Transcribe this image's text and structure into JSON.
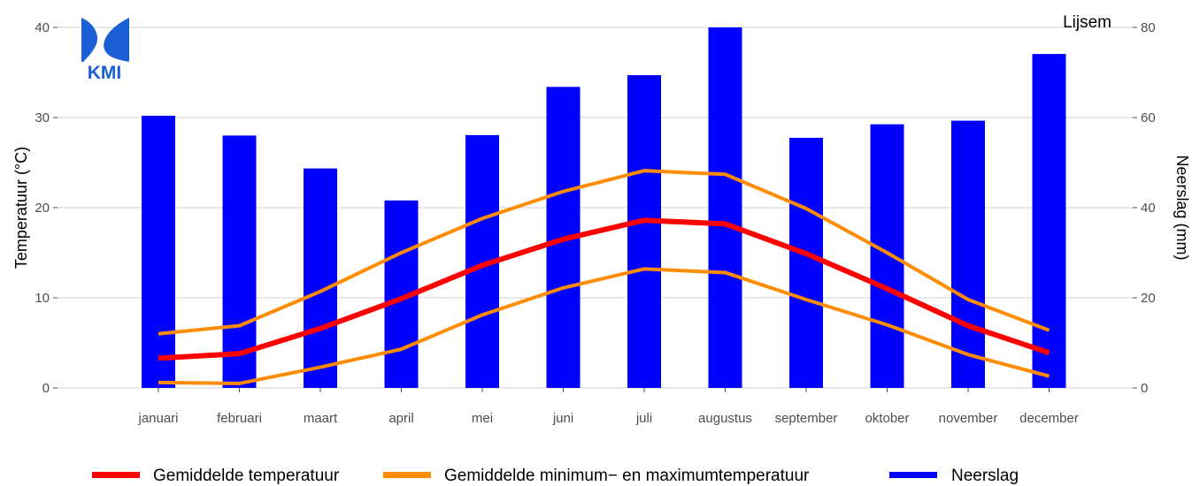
{
  "station": "Lijsem",
  "logo_text": "KMI",
  "chart_data": {
    "type": "bar",
    "categories": [
      "januari",
      "februari",
      "maart",
      "april",
      "mei",
      "juni",
      "juli",
      "augustus",
      "september",
      "oktober",
      "november",
      "december"
    ],
    "y_left": {
      "label": "Temperatuur (°C)",
      "lim": [
        0,
        40
      ],
      "ticks": [
        0,
        10,
        20,
        30,
        40
      ]
    },
    "y_right": {
      "label": "Neerslag (mm)",
      "lim": [
        0,
        80
      ],
      "ticks": [
        0,
        20,
        40,
        60,
        80
      ]
    },
    "series": [
      {
        "name": "Neerslag",
        "kind": "bar",
        "axis": "right",
        "color": "#0000ff",
        "values": [
          60.4,
          56.0,
          48.7,
          41.6,
          56.1,
          66.8,
          69.4,
          80.0,
          55.5,
          58.5,
          59.3,
          74.1
        ]
      },
      {
        "name": "Gemiddelde temperatuur",
        "kind": "line",
        "axis": "left",
        "color": "#ff0000",
        "values": [
          3.3,
          3.8,
          6.6,
          9.9,
          13.6,
          16.5,
          18.6,
          18.2,
          14.9,
          11.0,
          6.9,
          3.9
        ]
      },
      {
        "name": "Gemiddelde minimum− en maximumtemperatuur",
        "kind": "line",
        "axis": "left",
        "color": "#ff8c00",
        "values": [
          6.0,
          6.9,
          10.7,
          15.0,
          18.8,
          21.8,
          24.1,
          23.7,
          19.9,
          15.0,
          9.8,
          6.4
        ]
      },
      {
        "name": "",
        "kind": "line",
        "axis": "left",
        "color": "#ff8c00",
        "values": [
          0.6,
          0.5,
          2.3,
          4.3,
          8.1,
          11.1,
          13.2,
          12.8,
          9.8,
          7.0,
          3.7,
          1.3
        ]
      }
    ],
    "legend": [
      "Gemiddelde temperatuur",
      "Gemiddelde minimum− en maximumtemperatuur",
      "Neerslag"
    ],
    "legend_placement": "bottom",
    "grid": true
  }
}
